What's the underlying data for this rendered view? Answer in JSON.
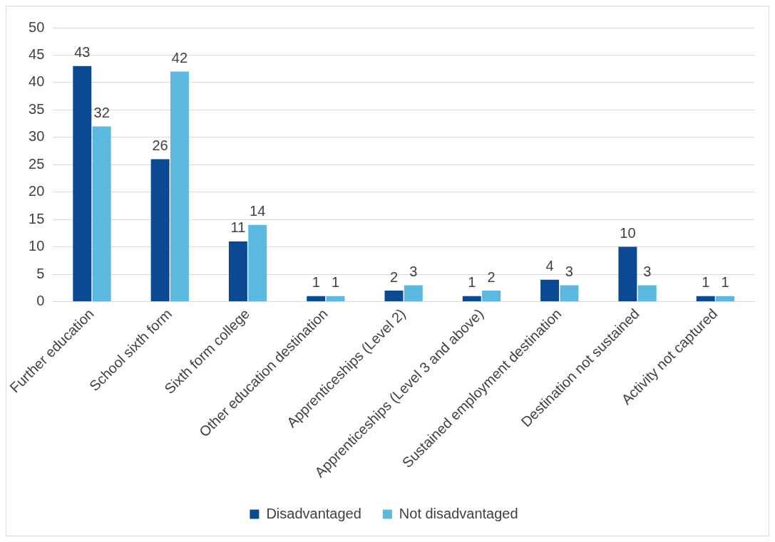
{
  "chart_data": {
    "type": "bar",
    "categories": [
      "Further education",
      "School sixth form",
      "Sixth form college",
      "Other education destination",
      "Apprenticeships (Level 2)",
      "Apprenticeships (Level 3 and above)",
      "Sustained employment destination",
      "Destination not sustained",
      "Activity not captured"
    ],
    "series": [
      {
        "name": "Disadvantaged",
        "color": "#0b4a92",
        "values": [
          43,
          26,
          11,
          1,
          2,
          1,
          4,
          10,
          1
        ]
      },
      {
        "name": "Not disadvantaged",
        "color": "#5bb9e0",
        "values": [
          32,
          42,
          14,
          1,
          3,
          2,
          3,
          3,
          1
        ]
      }
    ],
    "ylim": [
      0,
      50
    ],
    "yticks": [
      0,
      5,
      10,
      15,
      20,
      25,
      30,
      35,
      40,
      45,
      50
    ],
    "grid": "y",
    "legend": "bottom",
    "data_labels": true
  }
}
